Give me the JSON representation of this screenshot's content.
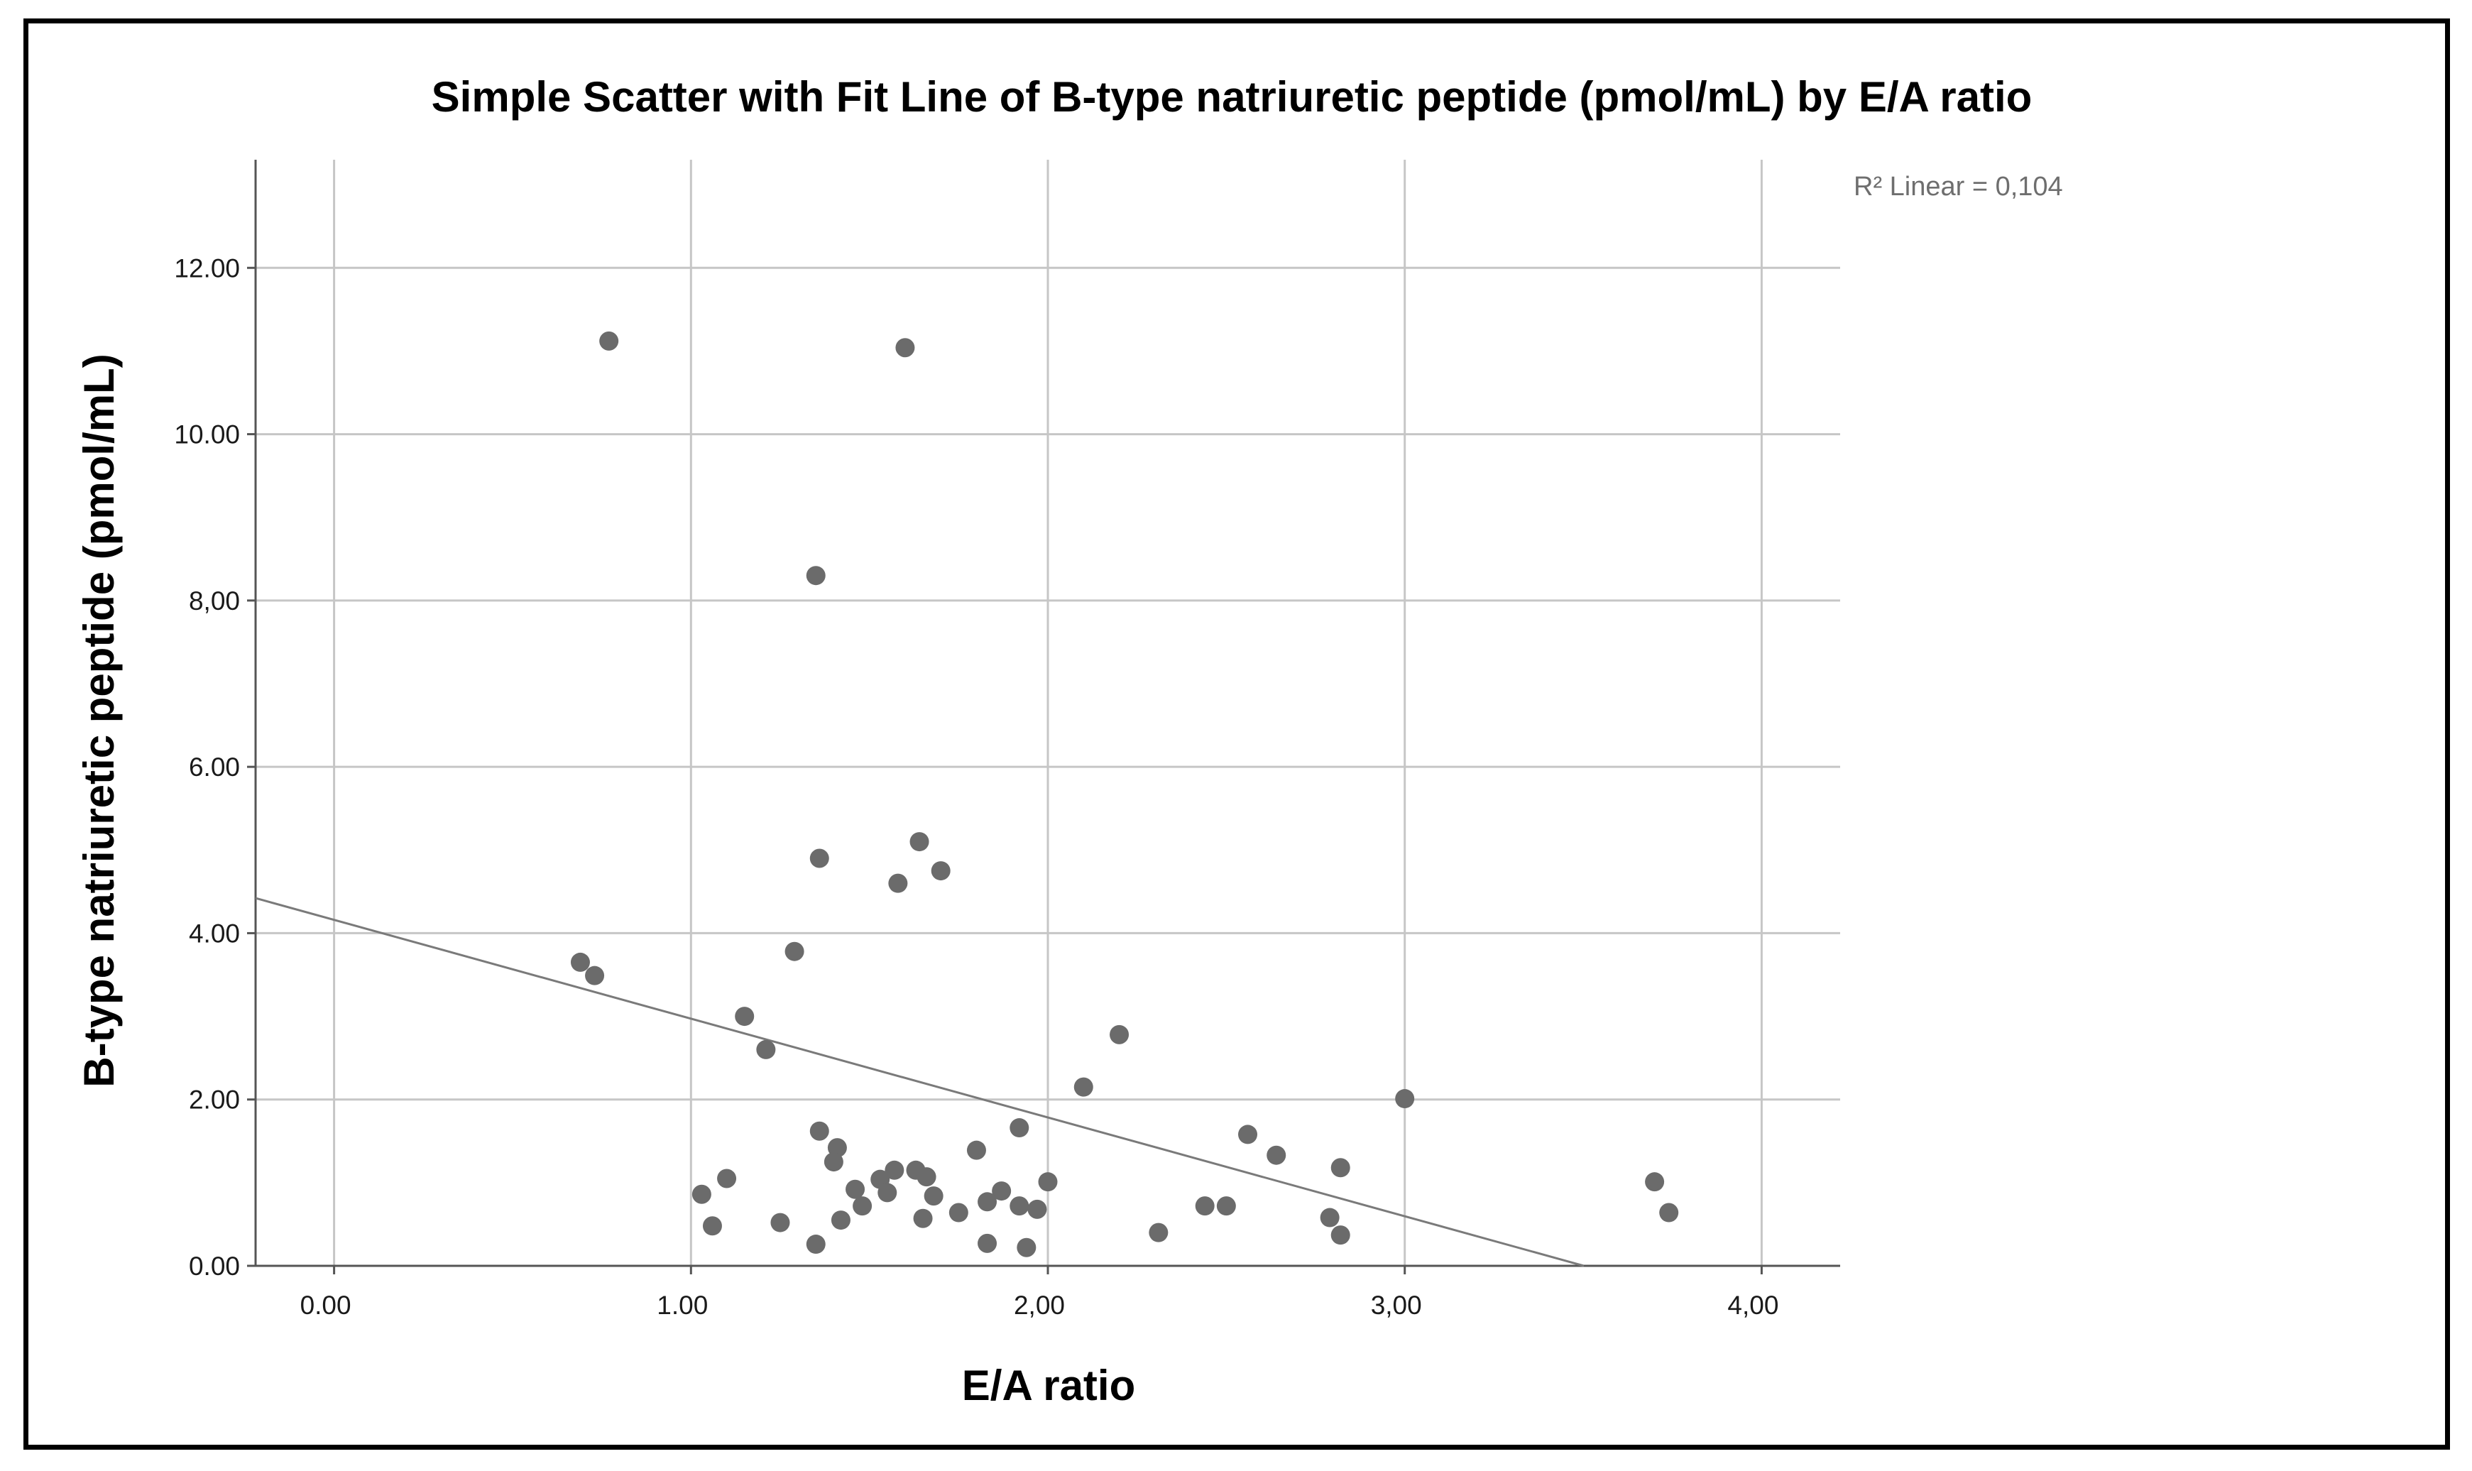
{
  "chart_data": {
    "type": "scatter",
    "title": "Simple Scatter with Fit Line of B-type natriuretic peptide (pmol/mL) by E/A ratio",
    "xlabel": "E/A ratio",
    "ylabel": "B-type natriuretic peptide (pmol/mL)",
    "xlim": [
      -0.22,
      4.22
    ],
    "ylim": [
      0,
      13.3
    ],
    "x_ticks": [
      0,
      1,
      2,
      3,
      4
    ],
    "x_tick_labels": [
      "0.00",
      "1.00",
      "2,00",
      "3,00",
      "4,00"
    ],
    "y_ticks": [
      0,
      2,
      4,
      6,
      8,
      10,
      12
    ],
    "y_tick_labels": [
      "0.00",
      "2.00",
      "4.00",
      "6.00",
      "8,00",
      "10.00",
      "12.00"
    ],
    "grid": true,
    "annotation": "R² Linear = 0,104",
    "point_color": "#6b6b6b",
    "fit_line": {
      "slope": -1.188,
      "intercept": 4.16
    },
    "points": [
      {
        "x": 0.77,
        "y": 11.12
      },
      {
        "x": 1.6,
        "y": 11.04
      },
      {
        "x": 1.35,
        "y": 8.3
      },
      {
        "x": 1.36,
        "y": 4.9
      },
      {
        "x": 1.64,
        "y": 5.1
      },
      {
        "x": 1.58,
        "y": 4.6
      },
      {
        "x": 1.7,
        "y": 4.75
      },
      {
        "x": 1.29,
        "y": 3.78
      },
      {
        "x": 0.69,
        "y": 3.65
      },
      {
        "x": 0.73,
        "y": 3.49
      },
      {
        "x": 1.15,
        "y": 3.0
      },
      {
        "x": 1.21,
        "y": 2.6
      },
      {
        "x": 2.2,
        "y": 2.78
      },
      {
        "x": 2.1,
        "y": 2.15
      },
      {
        "x": 3.0,
        "y": 2.01
      },
      {
        "x": 1.36,
        "y": 1.62
      },
      {
        "x": 1.41,
        "y": 1.42
      },
      {
        "x": 1.4,
        "y": 1.25
      },
      {
        "x": 1.8,
        "y": 1.39
      },
      {
        "x": 1.92,
        "y": 1.66
      },
      {
        "x": 2.56,
        "y": 1.58
      },
      {
        "x": 2.64,
        "y": 1.33
      },
      {
        "x": 2.82,
        "y": 1.18
      },
      {
        "x": 1.57,
        "y": 1.15
      },
      {
        "x": 1.63,
        "y": 1.15
      },
      {
        "x": 1.66,
        "y": 1.07
      },
      {
        "x": 1.53,
        "y": 1.04
      },
      {
        "x": 1.46,
        "y": 0.92
      },
      {
        "x": 1.55,
        "y": 0.88
      },
      {
        "x": 1.68,
        "y": 0.84
      },
      {
        "x": 1.87,
        "y": 0.9
      },
      {
        "x": 2.0,
        "y": 1.01
      },
      {
        "x": 1.1,
        "y": 1.05
      },
      {
        "x": 1.03,
        "y": 0.86
      },
      {
        "x": 1.48,
        "y": 0.72
      },
      {
        "x": 1.83,
        "y": 0.77
      },
      {
        "x": 1.92,
        "y": 0.72
      },
      {
        "x": 1.97,
        "y": 0.68
      },
      {
        "x": 1.75,
        "y": 0.64
      },
      {
        "x": 1.65,
        "y": 0.57
      },
      {
        "x": 1.42,
        "y": 0.55
      },
      {
        "x": 1.25,
        "y": 0.52
      },
      {
        "x": 1.06,
        "y": 0.48
      },
      {
        "x": 2.44,
        "y": 0.72
      },
      {
        "x": 2.5,
        "y": 0.72
      },
      {
        "x": 2.79,
        "y": 0.58
      },
      {
        "x": 2.31,
        "y": 0.4
      },
      {
        "x": 2.82,
        "y": 0.37
      },
      {
        "x": 1.83,
        "y": 0.27
      },
      {
        "x": 1.94,
        "y": 0.22
      },
      {
        "x": 1.35,
        "y": 0.26
      },
      {
        "x": 3.7,
        "y": 1.01
      },
      {
        "x": 3.74,
        "y": 0.64
      }
    ]
  }
}
